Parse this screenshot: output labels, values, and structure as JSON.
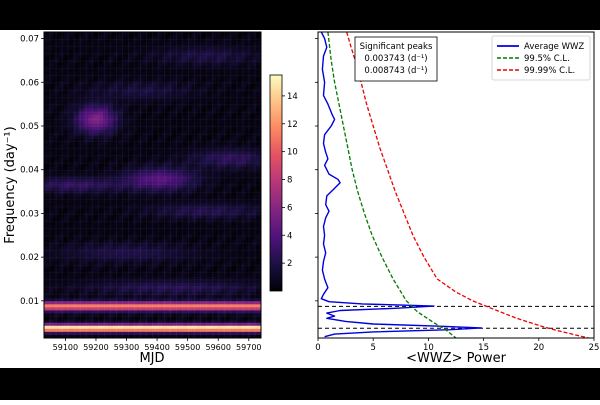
{
  "colors": {
    "background": "#ffffff",
    "frame_bars": "#000000",
    "average_wwz": "#0000dd",
    "cl_99_5": "#007a00",
    "cl_99_99": "#ee0000",
    "peak_lines": "#000000",
    "colormap": [
      "#000004",
      "#1c1044",
      "#4f127b",
      "#812581",
      "#b5367a",
      "#e55064",
      "#fb8761",
      "#fec287",
      "#fcfdbf"
    ]
  },
  "chart_data": [
    {
      "type": "heatmap",
      "title": "",
      "xlabel": "MJD",
      "ylabel": "Frequency (day⁻¹)",
      "xlim": [
        59030,
        59740
      ],
      "ylim": [
        0.0015,
        0.0715
      ],
      "x_ticks": [
        59100,
        59200,
        59300,
        59400,
        59500,
        59600,
        59700
      ],
      "x_tick_labels": [
        "59100",
        "59200",
        "59300",
        "59400",
        "59500",
        "59600",
        "59700"
      ],
      "y_ticks": [
        0.01,
        0.02,
        0.03,
        0.04,
        0.05,
        0.06,
        0.07
      ],
      "y_tick_labels": [
        "0.01",
        "0.02",
        "0.03",
        "0.04",
        "0.05",
        "0.06",
        "0.07"
      ],
      "color_range": [
        0,
        15.5
      ],
      "colorbar_ticks": [
        2,
        4,
        6,
        8,
        10,
        12,
        14
      ],
      "colorbar_tick_labels": [
        "2",
        "4",
        "6",
        "8",
        "10",
        "12",
        "14"
      ],
      "bands": [
        {
          "frequency": 0.003743,
          "width": 0.0006,
          "level": 15.0
        },
        {
          "frequency": 0.008743,
          "width": 0.0007,
          "level": 11.0
        }
      ],
      "blobs": [
        {
          "mjd": 59200,
          "frequency": 0.0515,
          "mjd_width": 45,
          "freq_width": 0.0022,
          "level": 5.2
        },
        {
          "mjd": 59410,
          "frequency": 0.0378,
          "mjd_width": 80,
          "freq_width": 0.0018,
          "level": 3.8
        },
        {
          "mjd": 59130,
          "frequency": 0.0365,
          "mjd_width": 110,
          "freq_width": 0.0012,
          "level": 2.4
        },
        {
          "mjd": 59640,
          "frequency": 0.0425,
          "mjd_width": 90,
          "freq_width": 0.0015,
          "level": 2.2
        },
        {
          "mjd": 59560,
          "frequency": 0.0305,
          "mjd_width": 130,
          "freq_width": 0.0012,
          "level": 1.8
        },
        {
          "mjd": 59300,
          "frequency": 0.021,
          "mjd_width": 150,
          "freq_width": 0.0015,
          "level": 1.6
        },
        {
          "mjd": 59450,
          "frequency": 0.013,
          "mjd_width": 200,
          "freq_width": 0.0012,
          "level": 1.9
        },
        {
          "mjd": 59560,
          "frequency": 0.066,
          "mjd_width": 120,
          "freq_width": 0.0015,
          "level": 1.4
        },
        {
          "mjd": 59350,
          "frequency": 0.058,
          "mjd_width": 120,
          "freq_width": 0.0015,
          "level": 1.3
        }
      ]
    },
    {
      "type": "line",
      "title": "",
      "xlabel": "<WWZ> Power",
      "ylabel": "",
      "xlim": [
        0,
        25
      ],
      "ylim": [
        0.0015,
        0.0715
      ],
      "x_ticks": [
        0,
        5,
        10,
        15,
        20,
        25
      ],
      "x_tick_labels": [
        "0",
        "5",
        "10",
        "15",
        "20",
        "25"
      ],
      "legend_position": "top-right",
      "series": [
        {
          "name": "Average WWZ",
          "style": "solid",
          "points": [
            [
              0.3,
              0.0715
            ],
            [
              0.6,
              0.07
            ],
            [
              0.8,
              0.068
            ],
            [
              0.5,
              0.066
            ],
            [
              0.4,
              0.063
            ],
            [
              0.6,
              0.06
            ],
            [
              0.5,
              0.057
            ],
            [
              0.9,
              0.055
            ],
            [
              1.3,
              0.0525
            ],
            [
              1.5,
              0.0515
            ],
            [
              1.2,
              0.05
            ],
            [
              0.6,
              0.048
            ],
            [
              0.5,
              0.046
            ],
            [
              0.7,
              0.044
            ],
            [
              0.9,
              0.0425
            ],
            [
              0.6,
              0.041
            ],
            [
              1.0,
              0.039
            ],
            [
              1.8,
              0.0378
            ],
            [
              2.0,
              0.037
            ],
            [
              1.4,
              0.0355
            ],
            [
              0.8,
              0.034
            ],
            [
              0.7,
              0.032
            ],
            [
              1.0,
              0.0305
            ],
            [
              0.7,
              0.029
            ],
            [
              0.5,
              0.027
            ],
            [
              0.6,
              0.025
            ],
            [
              0.5,
              0.023
            ],
            [
              0.7,
              0.021
            ],
            [
              0.5,
              0.019
            ],
            [
              0.4,
              0.017
            ],
            [
              0.6,
              0.015
            ],
            [
              0.9,
              0.013
            ],
            [
              0.5,
              0.0115
            ],
            [
              0.3,
              0.0105
            ],
            [
              1.0,
              0.0098
            ],
            [
              4.0,
              0.0093
            ],
            [
              10.5,
              0.0088
            ],
            [
              7.0,
              0.0083
            ],
            [
              2.0,
              0.0078
            ],
            [
              0.8,
              0.0072
            ],
            [
              1.5,
              0.0065
            ],
            [
              0.8,
              0.006
            ],
            [
              2.5,
              0.0053
            ],
            [
              5.0,
              0.0047
            ],
            [
              11.0,
              0.0042
            ],
            [
              14.8,
              0.0038
            ],
            [
              12.0,
              0.0034
            ],
            [
              5.0,
              0.0029
            ],
            [
              1.5,
              0.0024
            ],
            [
              0.6,
              0.0018
            ]
          ]
        },
        {
          "name": "99.5% C.L.",
          "style": "dashed",
          "points": [
            [
              0.9,
              0.0715
            ],
            [
              1.2,
              0.065
            ],
            [
              1.5,
              0.06
            ],
            [
              1.9,
              0.055
            ],
            [
              2.3,
              0.05
            ],
            [
              2.7,
              0.045
            ],
            [
              3.1,
              0.04
            ],
            [
              3.6,
              0.035
            ],
            [
              4.2,
              0.03
            ],
            [
              4.9,
              0.025
            ],
            [
              5.8,
              0.02
            ],
            [
              6.8,
              0.015
            ],
            [
              8.0,
              0.01
            ],
            [
              9.0,
              0.0075
            ],
            [
              10.5,
              0.005
            ],
            [
              11.5,
              0.0035
            ],
            [
              12.5,
              0.0015
            ]
          ]
        },
        {
          "name": "99.99% C.L.",
          "style": "dashed",
          "points": [
            [
              2.6,
              0.0715
            ],
            [
              3.0,
              0.068
            ],
            [
              3.5,
              0.064
            ],
            [
              3.9,
              0.06
            ],
            [
              4.4,
              0.055
            ],
            [
              5.0,
              0.05
            ],
            [
              5.6,
              0.045
            ],
            [
              6.3,
              0.04
            ],
            [
              7.0,
              0.035
            ],
            [
              7.8,
              0.03
            ],
            [
              8.6,
              0.025
            ],
            [
              9.6,
              0.02
            ],
            [
              10.8,
              0.015
            ],
            [
              12.5,
              0.012
            ],
            [
              14.0,
              0.01
            ],
            [
              16.0,
              0.008
            ],
            [
              18.0,
              0.006
            ],
            [
              20.5,
              0.004
            ],
            [
              22.0,
              0.003
            ],
            [
              24.5,
              0.0015
            ]
          ]
        }
      ],
      "reference_lines": [
        {
          "frequency": 0.008743
        },
        {
          "frequency": 0.003743
        }
      ],
      "annotation": {
        "title": "Significant peaks",
        "lines": [
          "0.003743 (d⁻¹)",
          "0.008743 (d⁻¹)"
        ]
      }
    }
  ]
}
